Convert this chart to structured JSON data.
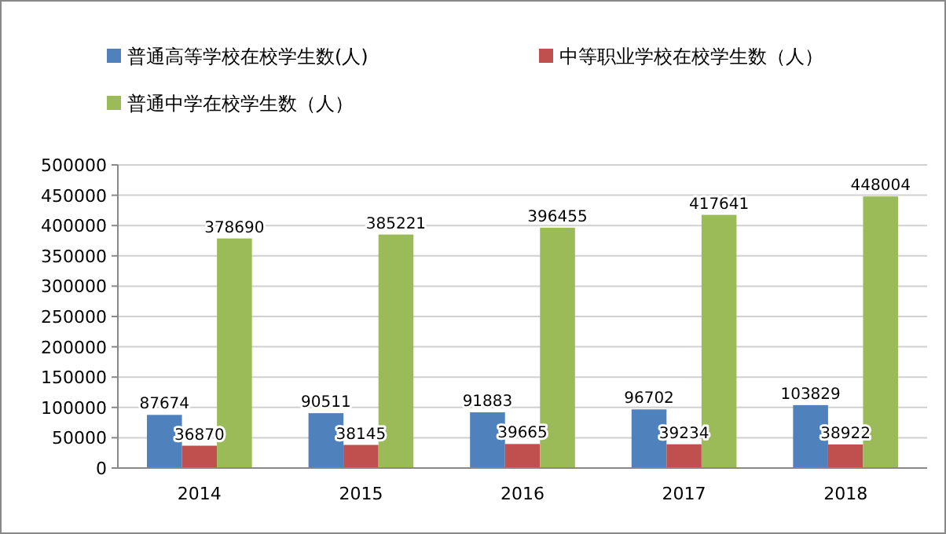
{
  "chart_data": {
    "type": "bar",
    "categories": [
      "2014",
      "2015",
      "2016",
      "2017",
      "2018"
    ],
    "series": [
      {
        "name": "普通高等学校在校学生数(人)",
        "color": "#4f81bd",
        "values": [
          87674,
          90511,
          91883,
          96702,
          103829
        ]
      },
      {
        "name": "中等职业学校在校学生数（人）",
        "color": "#c0504d",
        "values": [
          36870,
          38145,
          39665,
          39234,
          38922
        ]
      },
      {
        "name": "普通中学在校学生数（人）",
        "color": "#9bbb59",
        "values": [
          378690,
          385221,
          396455,
          417641,
          448004
        ]
      }
    ],
    "ylim": [
      0,
      500000
    ],
    "yticks": [
      0,
      50000,
      100000,
      150000,
      200000,
      250000,
      300000,
      350000,
      400000,
      450000,
      500000
    ],
    "grid": "y",
    "legend": "top",
    "data_labels": true
  }
}
